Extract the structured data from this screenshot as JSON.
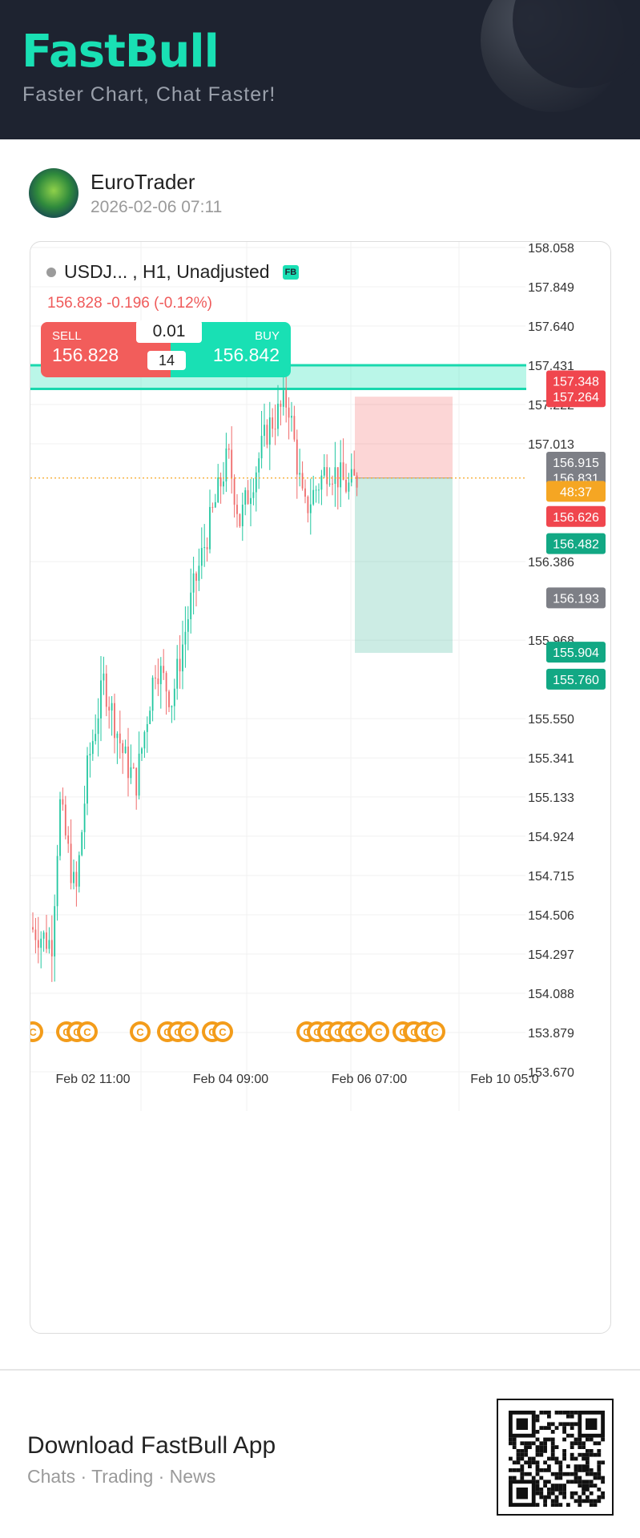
{
  "header": {
    "brand": "FastBull",
    "tagline": "Faster Chart, Chat Faster!"
  },
  "post": {
    "username": "EuroTrader",
    "time": "2026-02-06 07:11"
  },
  "chart": {
    "symbol": "USDJ...",
    "info": ", H1, Unadjusted",
    "badge": "FB",
    "price_change": "156.828   -0.196 (-0.12%)",
    "sell_label": "SELL",
    "sell_price": "156.828",
    "buy_label": "BUY",
    "buy_price": "156.842",
    "lot": "0.01",
    "spread": "14"
  },
  "chart_data": {
    "type": "candlestick",
    "ylim": [
      153.6,
      158.1
    ],
    "y_ticks": [
      "158.058",
      "157.849",
      "157.640",
      "157.431",
      "157.222",
      "157.013",
      "156.386",
      "155.968",
      "155.550",
      "155.341",
      "155.133",
      "154.924",
      "154.715",
      "154.506",
      "154.297",
      "154.088",
      "153.879",
      "153.670"
    ],
    "x_ticks": [
      "Feb 02 11:00",
      "Feb 04 09:00",
      "Feb 06 07:00",
      "Feb 10 05:0"
    ],
    "price_labels": [
      {
        "text": "157.348",
        "value": 157.348,
        "color": "#f0464e"
      },
      {
        "text": "157.264",
        "value": 157.264,
        "color": "#f0464e"
      },
      {
        "text": "156.915",
        "value": 156.915,
        "color": "#7d7f86"
      },
      {
        "text": "156.831",
        "value": 156.831,
        "color": "#7d7f86"
      },
      {
        "text": "48:37",
        "value": 156.76,
        "color": "#f5a623"
      },
      {
        "text": "156.626",
        "value": 156.626,
        "color": "#f0464e"
      },
      {
        "text": "156.482",
        "value": 156.482,
        "color": "#12a884"
      },
      {
        "text": "156.193",
        "value": 156.193,
        "color": "#7d7f86"
      },
      {
        "text": "155.904",
        "value": 155.904,
        "color": "#12a884"
      },
      {
        "text": "155.760",
        "value": 155.76,
        "color": "#12a884"
      }
    ],
    "zone": {
      "top": 157.431,
      "bottom": 157.348
    },
    "position": {
      "stop": 157.264,
      "entry": 156.831,
      "target": 155.9
    },
    "current_price": 156.831,
    "up_color": "#22c7a0",
    "down_color": "#ef6b6b"
  },
  "footer": {
    "title": "Download FastBull App",
    "subtitle": "Chats · Trading · News"
  }
}
